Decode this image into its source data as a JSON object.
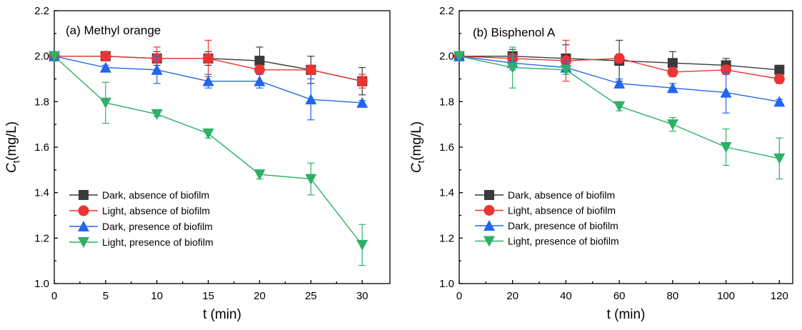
{
  "chart_data": [
    {
      "type": "line",
      "title": "(a) Methyl orange",
      "xlabel": "t (min)",
      "ylabel_main": "C",
      "ylabel_sub": "t",
      "ylabel_tail": "(mg/L)",
      "xlim": [
        0,
        32.7
      ],
      "ylim": [
        1.0,
        2.2
      ],
      "xticks": [
        0,
        5,
        10,
        15,
        20,
        25,
        30
      ],
      "yticks": [
        1.0,
        1.2,
        1.4,
        1.6,
        1.8,
        2.0,
        2.2
      ],
      "ytick_labels": [
        "1.0",
        "1.2",
        "1.4",
        "1.6",
        "1.8",
        "2.0",
        "2.2"
      ],
      "x": [
        0,
        5,
        10,
        15,
        20,
        25,
        30
      ],
      "legend_position": "lower-left",
      "series": [
        {
          "name": "Dark, absence of biofilm",
          "marker": "square",
          "color": "#3a3a3a",
          "values": [
            2.0,
            2.0,
            1.99,
            1.99,
            1.98,
            1.94,
            1.89
          ],
          "errors": [
            0,
            0.02,
            0.03,
            0.03,
            0.06,
            0.06,
            0.06
          ]
        },
        {
          "name": "Light, absence of biofilm",
          "marker": "circle",
          "color": "#ee3333",
          "values": [
            2.0,
            2.0,
            1.99,
            1.99,
            1.94,
            1.94,
            1.89
          ],
          "errors": [
            0,
            0.02,
            0.05,
            0.08,
            0.02,
            0.02,
            0.03
          ]
        },
        {
          "name": "Dark, presence of biofilm",
          "marker": "triangle-up",
          "color": "#2266ee",
          "values": [
            2.0,
            1.95,
            1.94,
            1.89,
            1.89,
            1.81,
            1.795
          ],
          "errors": [
            0,
            0.01,
            0.06,
            0.03,
            0.03,
            0.09,
            0.01
          ]
        },
        {
          "name": "Light, presence of biofilm",
          "marker": "triangle-down",
          "color": "#2db067",
          "values": [
            2.0,
            1.795,
            1.745,
            1.66,
            1.48,
            1.46,
            1.17
          ],
          "errors": [
            0,
            0.09,
            0.01,
            0.02,
            0.02,
            0.07,
            0.09
          ]
        }
      ]
    },
    {
      "type": "line",
      "title": "(b) Bisphenol A",
      "xlabel": "t (min)",
      "ylabel_main": "C",
      "ylabel_sub": "t",
      "ylabel_tail": "(mg/L)",
      "xlim": [
        0,
        125
      ],
      "ylim": [
        1.0,
        2.2
      ],
      "xticks": [
        0,
        20,
        40,
        60,
        80,
        100,
        120
      ],
      "yticks": [
        1.0,
        1.2,
        1.4,
        1.6,
        1.8,
        2.0,
        2.2
      ],
      "ytick_labels": [
        "1.0",
        "1.2",
        "1.4",
        "1.6",
        "1.8",
        "2.0",
        "2.2"
      ],
      "x": [
        0,
        20,
        40,
        60,
        80,
        100,
        120
      ],
      "legend_position": "lower-left",
      "series": [
        {
          "name": "Dark, absence of biofilm",
          "marker": "square",
          "color": "#3a3a3a",
          "values": [
            2.0,
            2.0,
            1.99,
            1.98,
            1.97,
            1.96,
            1.94
          ],
          "errors": [
            0,
            0.03,
            0.06,
            0.09,
            0.05,
            0.03,
            0.02
          ]
        },
        {
          "name": "Light, absence of biofilm",
          "marker": "circle",
          "color": "#ee3333",
          "values": [
            2.0,
            1.99,
            1.98,
            1.99,
            1.93,
            1.94,
            1.9
          ],
          "errors": [
            0,
            0.02,
            0.09,
            0.02,
            0.02,
            0.02,
            0.02
          ]
        },
        {
          "name": "Dark, presence of biofilm",
          "marker": "triangle-up",
          "color": "#2266ee",
          "values": [
            2.0,
            1.97,
            1.95,
            1.88,
            1.86,
            1.84,
            1.8
          ],
          "errors": [
            0,
            0.03,
            0.03,
            0.02,
            0.02,
            0.09,
            0.01
          ]
        },
        {
          "name": "Light, presence of biofilm",
          "marker": "triangle-down",
          "color": "#2db067",
          "values": [
            2.0,
            1.95,
            1.94,
            1.78,
            1.7,
            1.6,
            1.55
          ],
          "errors": [
            0,
            0.09,
            0.02,
            0.02,
            0.03,
            0.08,
            0.09
          ]
        }
      ]
    }
  ]
}
